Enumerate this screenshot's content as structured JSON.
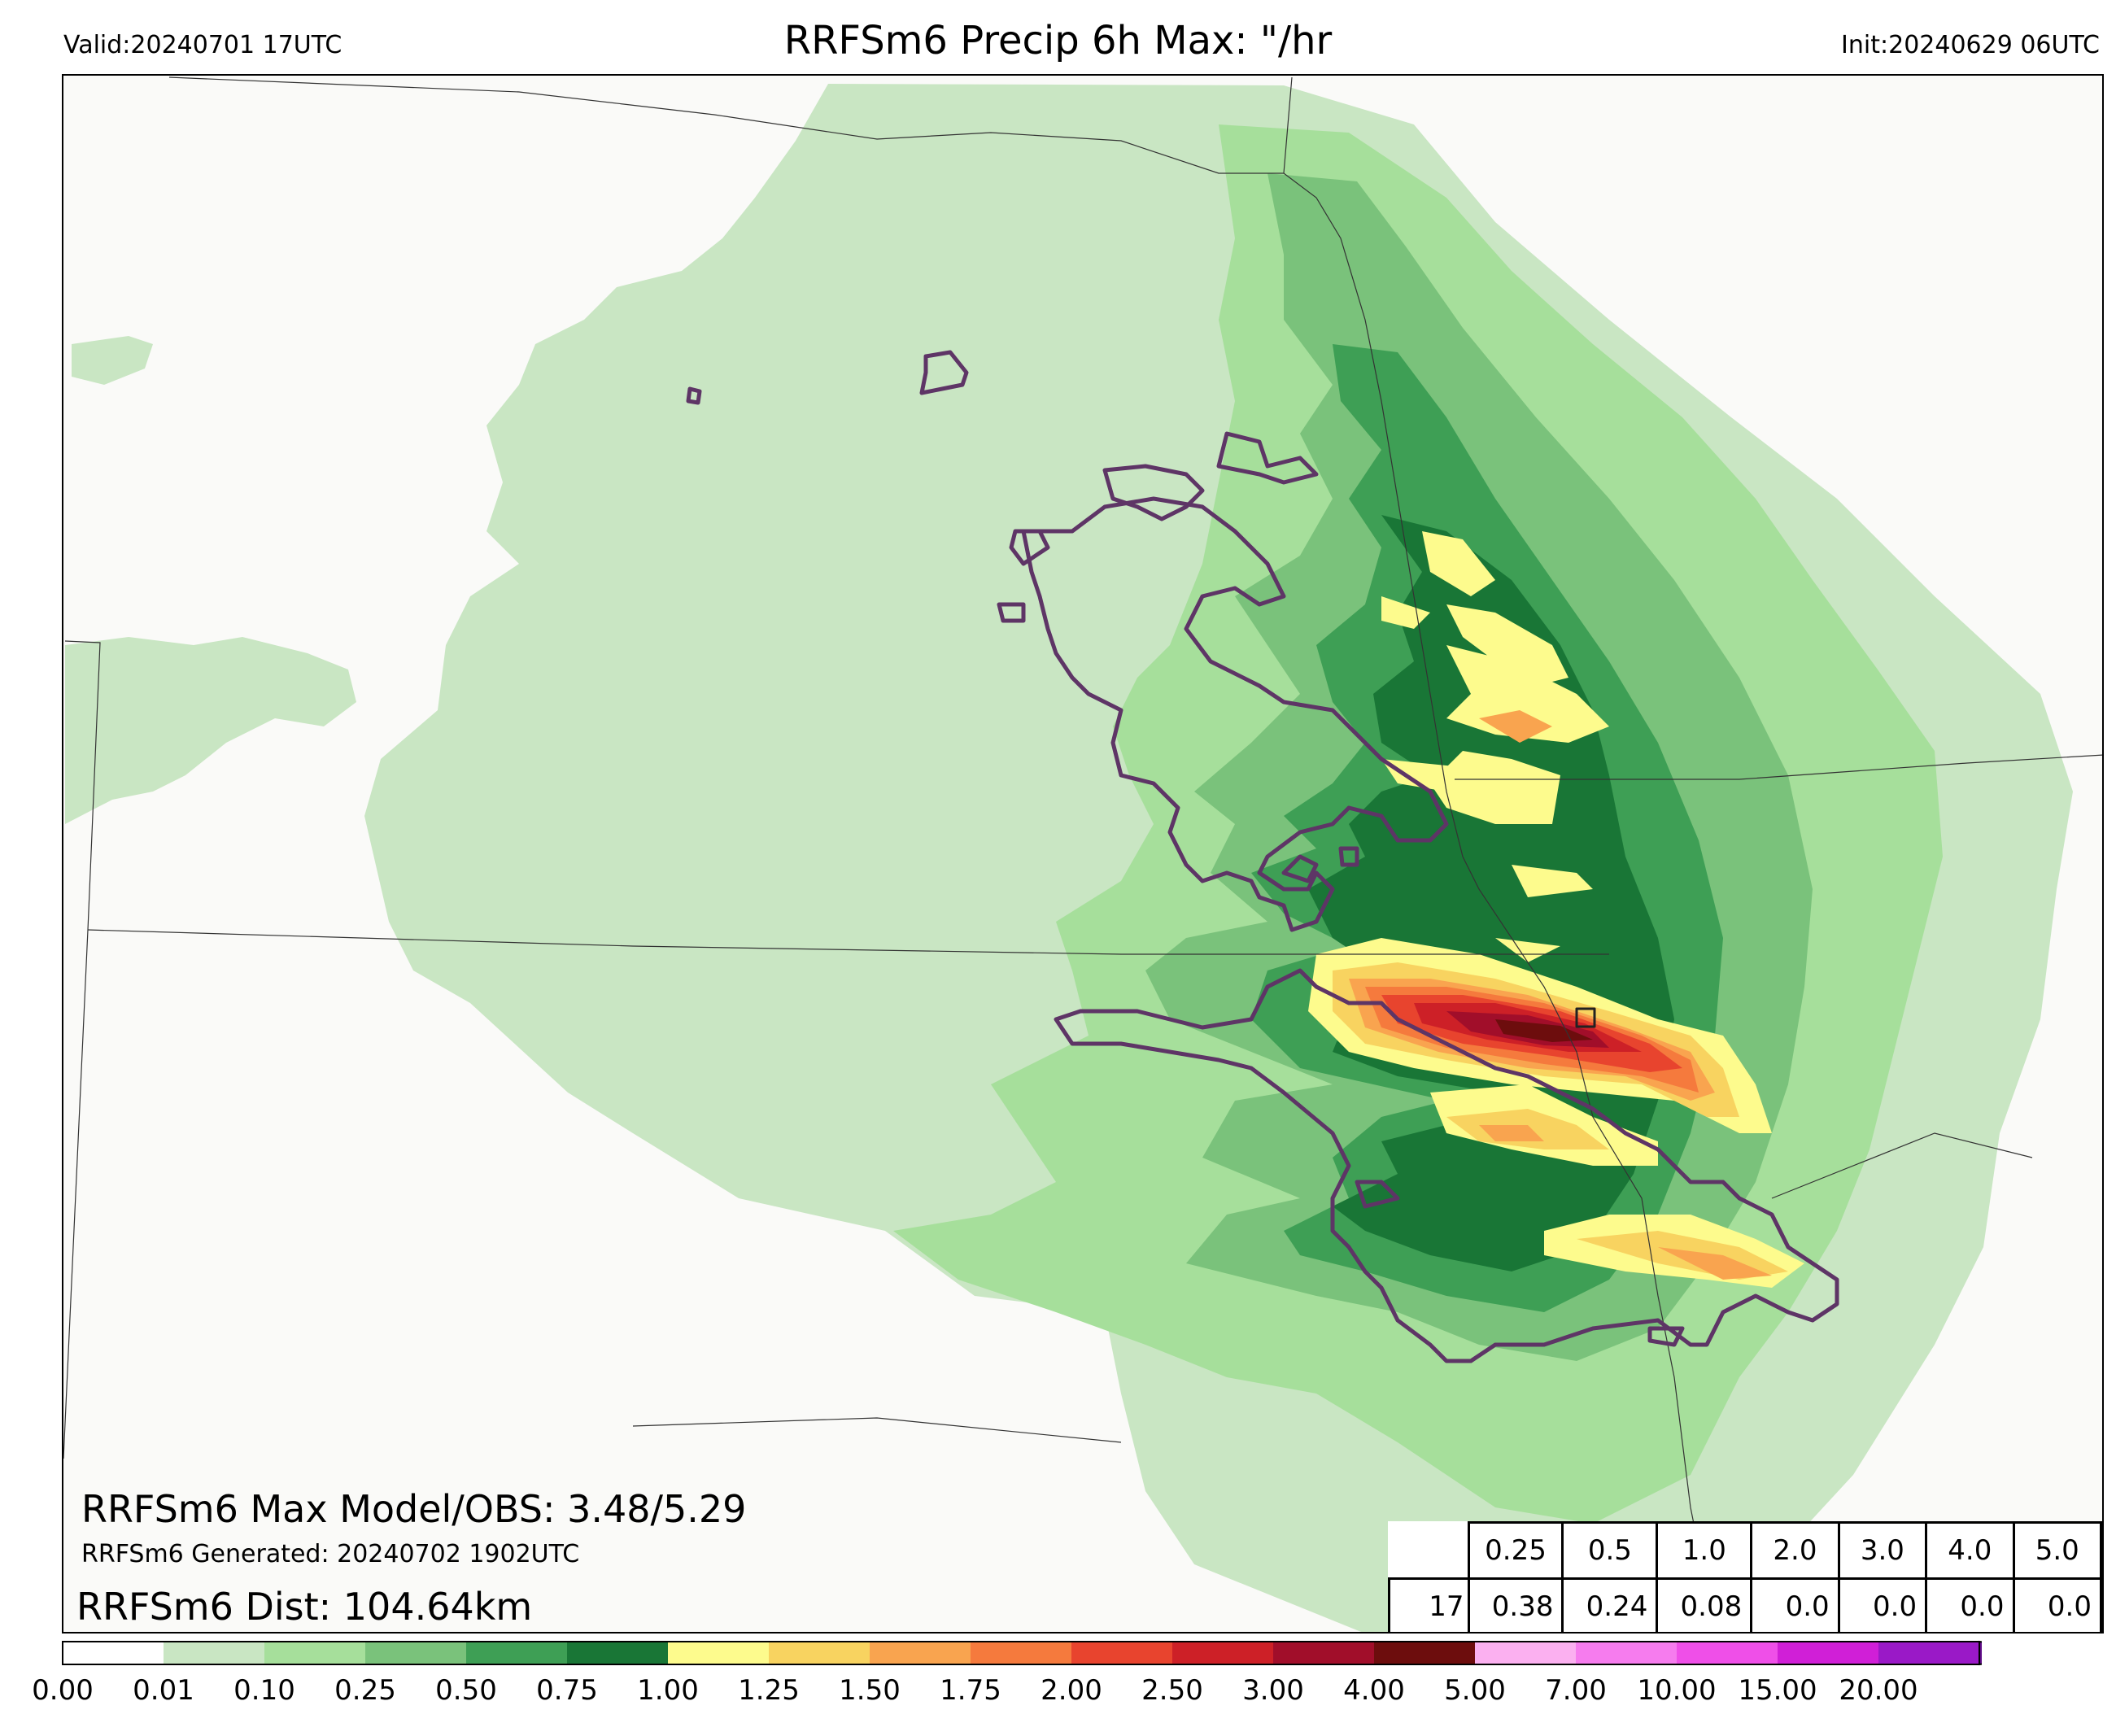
{
  "header": {
    "valid": "Valid:20240701 17UTC",
    "title": "RRFSm6 Precip 6h Max: \"/hr",
    "init": "Init:20240629 06UTC"
  },
  "stats": {
    "max_model_obs": "RRFSm6 Max Model/OBS: 3.48/5.29",
    "generated": "RRFSm6 Generated: 20240702 1902UTC",
    "distance": "RRFSm6 Dist: 104.64km"
  },
  "threshold_table": {
    "thresholds": [
      "0.25",
      "0.5",
      "1.0",
      "2.0",
      "3.0",
      "4.0",
      "5.0"
    ],
    "hour": "17",
    "values": [
      "0.38",
      "0.24",
      "0.08",
      "0.0",
      "0.0",
      "0.0",
      "0.0"
    ]
  },
  "colorbar": {
    "ticks": [
      "0.00",
      "0.01",
      "0.10",
      "0.25",
      "0.50",
      "0.75",
      "1.00",
      "1.25",
      "1.50",
      "1.75",
      "2.00",
      "2.50",
      "3.00",
      "4.00",
      "5.00",
      "7.00",
      "10.00",
      "15.00",
      "20.00"
    ],
    "colors": [
      "#ffffff",
      "#c9e6c3",
      "#a6df9b",
      "#7ac27b",
      "#3e9f55",
      "#197636",
      "#fdfb8d",
      "#f8d360",
      "#f9a44f",
      "#f57a3d",
      "#e8442e",
      "#cd2027",
      "#a10e2a",
      "#6d0d0d",
      "#fbb0f0",
      "#f67cee",
      "#ef4fe8",
      "#d01fd7",
      "#9a19c7",
      "#5f0b88"
    ]
  },
  "map": {
    "fill_colors": {
      "lightest": "#c9e6c3",
      "light": "#a6df9b",
      "medium": "#7ac27b",
      "green": "#3e9f55",
      "dark_green": "#197636",
      "yellow": "#fdfb8d",
      "gold": "#f8d360",
      "orange": "#f9a44f",
      "red_orange": "#f57a3d",
      "red": "#e8442e",
      "crimson": "#cd2027",
      "dark_red": "#a10e2a",
      "maroon": "#6d0d0d"
    },
    "obs_contour_color": "#5e3566"
  }
}
